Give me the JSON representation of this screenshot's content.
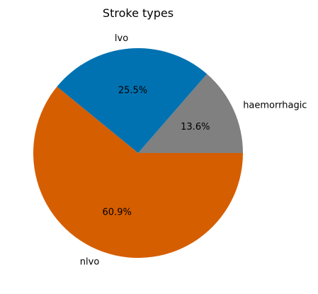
{
  "chart_data": {
    "type": "pie",
    "title": "Stroke types",
    "slices": [
      {
        "label": "haemorrhagic",
        "percent": 13.6,
        "percent_label": "13.6%",
        "color": "#808080"
      },
      {
        "label": "lvo",
        "percent": 25.5,
        "percent_label": "25.5%",
        "color": "#0072b2"
      },
      {
        "label": "nlvo",
        "percent": 60.9,
        "percent_label": "60.9%",
        "color": "#d55e00"
      }
    ],
    "start_angle": "0° (3 o'clock), counter-clockwise"
  }
}
